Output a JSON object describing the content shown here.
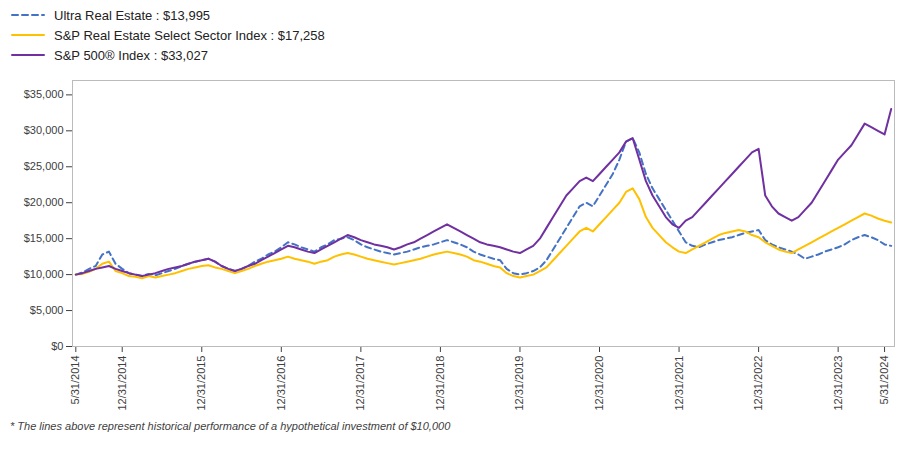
{
  "chart_data": {
    "type": "line",
    "categories": [
      "5/31/2014",
      null,
      null,
      null,
      null,
      null,
      null,
      "12/31/2014",
      null,
      null,
      null,
      null,
      null,
      null,
      null,
      null,
      null,
      null,
      null,
      "12/31/2015",
      null,
      null,
      null,
      null,
      null,
      null,
      null,
      null,
      null,
      null,
      null,
      "12/31/2016",
      null,
      null,
      null,
      null,
      null,
      null,
      null,
      null,
      null,
      null,
      null,
      "12/31/2017",
      null,
      null,
      null,
      null,
      null,
      null,
      null,
      null,
      null,
      null,
      null,
      "12/31/2018",
      null,
      null,
      null,
      null,
      null,
      null,
      null,
      null,
      null,
      null,
      null,
      "12/31/2019",
      null,
      null,
      null,
      null,
      null,
      null,
      null,
      null,
      null,
      null,
      null,
      "12/31/2020",
      null,
      null,
      null,
      null,
      null,
      null,
      null,
      null,
      null,
      null,
      null,
      "12/31/2021",
      null,
      null,
      null,
      null,
      null,
      null,
      null,
      null,
      null,
      null,
      null,
      "12/31/2022",
      null,
      null,
      null,
      null,
      null,
      null,
      null,
      null,
      null,
      null,
      null,
      "12/31/2023",
      null,
      null,
      null,
      null,
      null,
      null,
      "5/31/2024",
      null
    ],
    "series": [
      {
        "name": "Ultra Real Estate : $13,995",
        "color": "#4472C4",
        "line_style": "dashed",
        "values": [
          10000,
          10300,
          10800,
          11200,
          12800,
          13200,
          11500,
          10800,
          10200,
          10000,
          9800,
          10100,
          9900,
          10200,
          10500,
          10800,
          11200,
          11500,
          11800,
          12000,
          12200,
          11800,
          11200,
          10800,
          10500,
          10800,
          11200,
          11800,
          12200,
          12800,
          13200,
          13800,
          14500,
          14200,
          13800,
          13500,
          13200,
          13800,
          14200,
          14800,
          15000,
          15200,
          14800,
          14200,
          13800,
          13500,
          13200,
          13000,
          12800,
          13000,
          13200,
          13500,
          13800,
          14000,
          14200,
          14500,
          14800,
          14500,
          14200,
          13800,
          13200,
          12800,
          12500,
          12200,
          12000,
          10800,
          10200,
          10000,
          10200,
          10500,
          11000,
          12000,
          13500,
          15000,
          16500,
          18000,
          19500,
          20000,
          19500,
          21000,
          22500,
          24000,
          26000,
          28500,
          29000,
          27000,
          24000,
          22000,
          20500,
          19000,
          17500,
          16000,
          14500,
          14000,
          13800,
          14200,
          14500,
          14800,
          15000,
          15200,
          15500,
          15800,
          16000,
          16200,
          14800,
          14200,
          13800,
          13500,
          13200,
          12800,
          12200,
          12500,
          12800,
          13200,
          13500,
          13800,
          14200,
          14800,
          15200,
          15500,
          15200,
          14800,
          14200,
          13995
        ]
      },
      {
        "name": "S&P Real Estate Select Sector Index : $17,258",
        "color": "#FFC000",
        "line_style": "solid",
        "values": [
          10000,
          10100,
          10400,
          10800,
          11500,
          11800,
          10500,
          10200,
          9800,
          9700,
          9500,
          9800,
          9600,
          9800,
          10000,
          10200,
          10500,
          10800,
          11000,
          11200,
          11300,
          11000,
          10800,
          10500,
          10200,
          10500,
          10800,
          11200,
          11500,
          11800,
          12000,
          12200,
          12500,
          12200,
          12000,
          11800,
          11500,
          11800,
          12000,
          12500,
          12800,
          13000,
          12800,
          12500,
          12200,
          12000,
          11800,
          11600,
          11400,
          11600,
          11800,
          12000,
          12200,
          12500,
          12800,
          13000,
          13200,
          13000,
          12800,
          12500,
          12000,
          11800,
          11500,
          11200,
          11000,
          10200,
          9800,
          9600,
          9800,
          10000,
          10500,
          11000,
          12000,
          13000,
          14000,
          15000,
          16000,
          16500,
          16000,
          17000,
          18000,
          19000,
          20000,
          21500,
          22000,
          20500,
          18000,
          16500,
          15500,
          14500,
          13800,
          13200,
          13000,
          13500,
          14000,
          14500,
          15000,
          15500,
          15800,
          16000,
          16200,
          16000,
          15500,
          15200,
          14500,
          14000,
          13500,
          13200,
          13000,
          13500,
          14000,
          14500,
          15000,
          15500,
          16000,
          16500,
          17000,
          17500,
          18000,
          18500,
          18200,
          17800,
          17500,
          17258
        ]
      },
      {
        "name": "S&P 500® Index : $33,027",
        "color": "#7030A0",
        "line_style": "solid",
        "values": [
          10000,
          10200,
          10500,
          10800,
          11000,
          11200,
          10800,
          10500,
          10200,
          10000,
          9800,
          10000,
          10200,
          10500,
          10800,
          11000,
          11200,
          11500,
          11800,
          12000,
          12200,
          11800,
          11200,
          10800,
          10500,
          10800,
          11200,
          11500,
          12000,
          12500,
          13000,
          13500,
          14000,
          13800,
          13500,
          13200,
          13000,
          13500,
          14000,
          14500,
          15000,
          15500,
          15200,
          14800,
          14500,
          14200,
          14000,
          13800,
          13500,
          13800,
          14200,
          14500,
          15000,
          15500,
          16000,
          16500,
          17000,
          16500,
          16000,
          15500,
          15000,
          14500,
          14200,
          14000,
          13800,
          13500,
          13200,
          13000,
          13500,
          14000,
          15000,
          16500,
          18000,
          19500,
          21000,
          22000,
          23000,
          23500,
          23000,
          24000,
          25000,
          26000,
          27000,
          28500,
          29000,
          26000,
          23000,
          21000,
          19500,
          18000,
          17000,
          16500,
          17500,
          18000,
          19000,
          20000,
          21000,
          22000,
          23000,
          24000,
          25000,
          26000,
          27000,
          27500,
          21000,
          19500,
          18500,
          18000,
          17500,
          18000,
          19000,
          20000,
          21500,
          23000,
          24500,
          26000,
          27000,
          28000,
          29500,
          31000,
          30500,
          30000,
          29500,
          33027
        ]
      }
    ],
    "ylim": [
      0,
      37000
    ],
    "yticks": [
      {
        "value": 0,
        "label": "$0"
      },
      {
        "value": 5000,
        "label": "$5,000"
      },
      {
        "value": 10000,
        "label": "$10,000"
      },
      {
        "value": 15000,
        "label": "$15,000"
      },
      {
        "value": 20000,
        "label": "$20,000"
      },
      {
        "value": 25000,
        "label": "$25,000"
      },
      {
        "value": 30000,
        "label": "$30,000"
      },
      {
        "value": 35000,
        "label": "$35,000"
      }
    ],
    "grid": false,
    "legend": "upper left",
    "footnote": "* The lines above represent historical performance of a hypothetical investment of $10,000"
  }
}
